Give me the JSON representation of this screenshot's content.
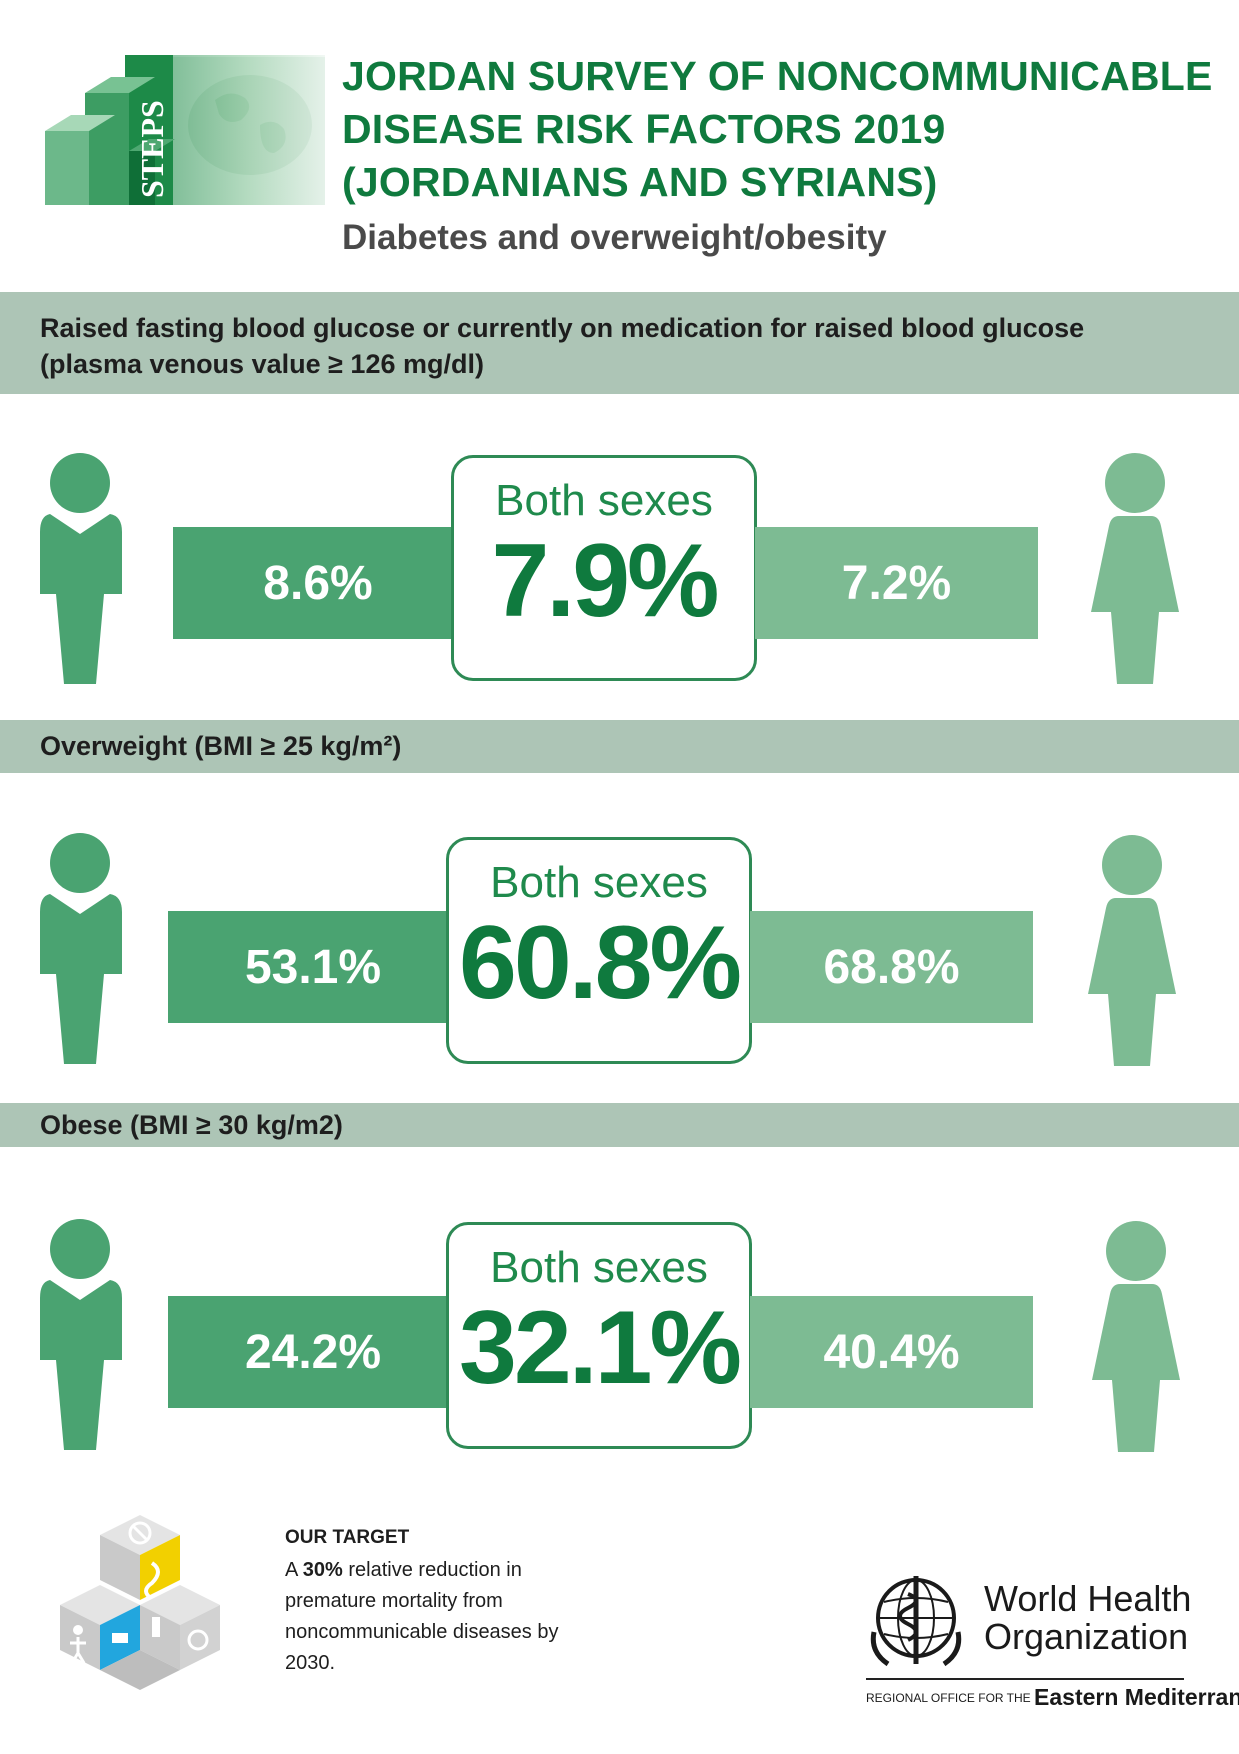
{
  "header": {
    "logo_text": "STEPS",
    "title_lines": [
      "JORDAN SURVEY OF NONCOMMUNICABLE",
      "DISEASE RISK FACTORS 2019",
      "(JORDANIANS AND SYRIANS)"
    ],
    "subtitle": "Diabetes and overweight/obesity"
  },
  "sections": [
    {
      "heading_lines": [
        "Raised fasting blood glucose or currently on medication for raised blood glucose",
        "(plasma venous value ≥ 126 mg/dl)"
      ],
      "male": "8.6%",
      "both_label": "Both sexes",
      "both": "7.9%",
      "female": "7.2%"
    },
    {
      "heading_lines": [
        "Overweight (BMI ≥ 25 kg/m²)"
      ],
      "male": "53.1%",
      "both_label": "Both sexes",
      "both": "60.8%",
      "female": "68.8%"
    },
    {
      "heading_lines": [
        "Obese (BMI ≥ 30 kg/m2)"
      ],
      "male": "24.2%",
      "both_label": "Both sexes",
      "both": "32.1%",
      "female": "40.4%"
    }
  ],
  "footer": {
    "target_title": "OUR TARGET",
    "target_pre": "A ",
    "target_bold": "30%",
    "target_post": " relative reduction in premature mortality from noncommunicable diseases by 2030.",
    "who_line1": "World Health",
    "who_line2": "Organization",
    "region_prefix": "REGIONAL OFFICE FOR THE ",
    "region_name": "Eastern Mediterranean"
  },
  "colors": {
    "title_green": "#0f7a3e",
    "band": "#adc5b6",
    "male_bar": "#4aa371",
    "female_bar": "#7dbb93",
    "male_icon": "#4aa371",
    "female_icon": "#7dbb93"
  },
  "icons": [
    "steps-logo-icon",
    "male-person-icon",
    "female-person-icon",
    "ncd-cubes-icon",
    "who-emblem-icon"
  ]
}
